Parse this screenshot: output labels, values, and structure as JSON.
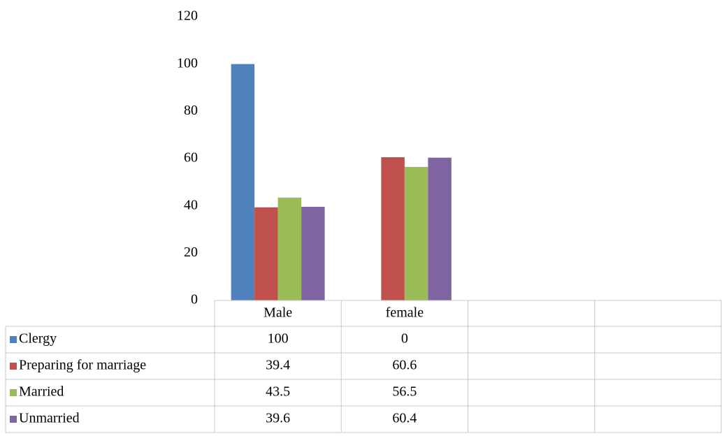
{
  "chart_data": {
    "type": "bar",
    "categories": [
      "Male",
      "female",
      null,
      null
    ],
    "series": [
      {
        "name": "Clergy",
        "color": "#4f81bd",
        "values": [
          100,
          0,
          null,
          null
        ]
      },
      {
        "name": "Preparing for marriage",
        "color": "#c0504d",
        "values": [
          39.4,
          60.6,
          null,
          null
        ]
      },
      {
        "name": "Married",
        "color": "#9bbb59",
        "values": [
          43.5,
          56.5,
          null,
          null
        ]
      },
      {
        "name": "Unmarried",
        "color": "#8064a2",
        "values": [
          39.6,
          60.4,
          null,
          null
        ]
      }
    ],
    "ylim": [
      0,
      120
    ],
    "yticks": [
      0,
      20,
      40,
      60,
      80,
      100,
      120
    ],
    "grid": false,
    "legend": "data-table"
  }
}
